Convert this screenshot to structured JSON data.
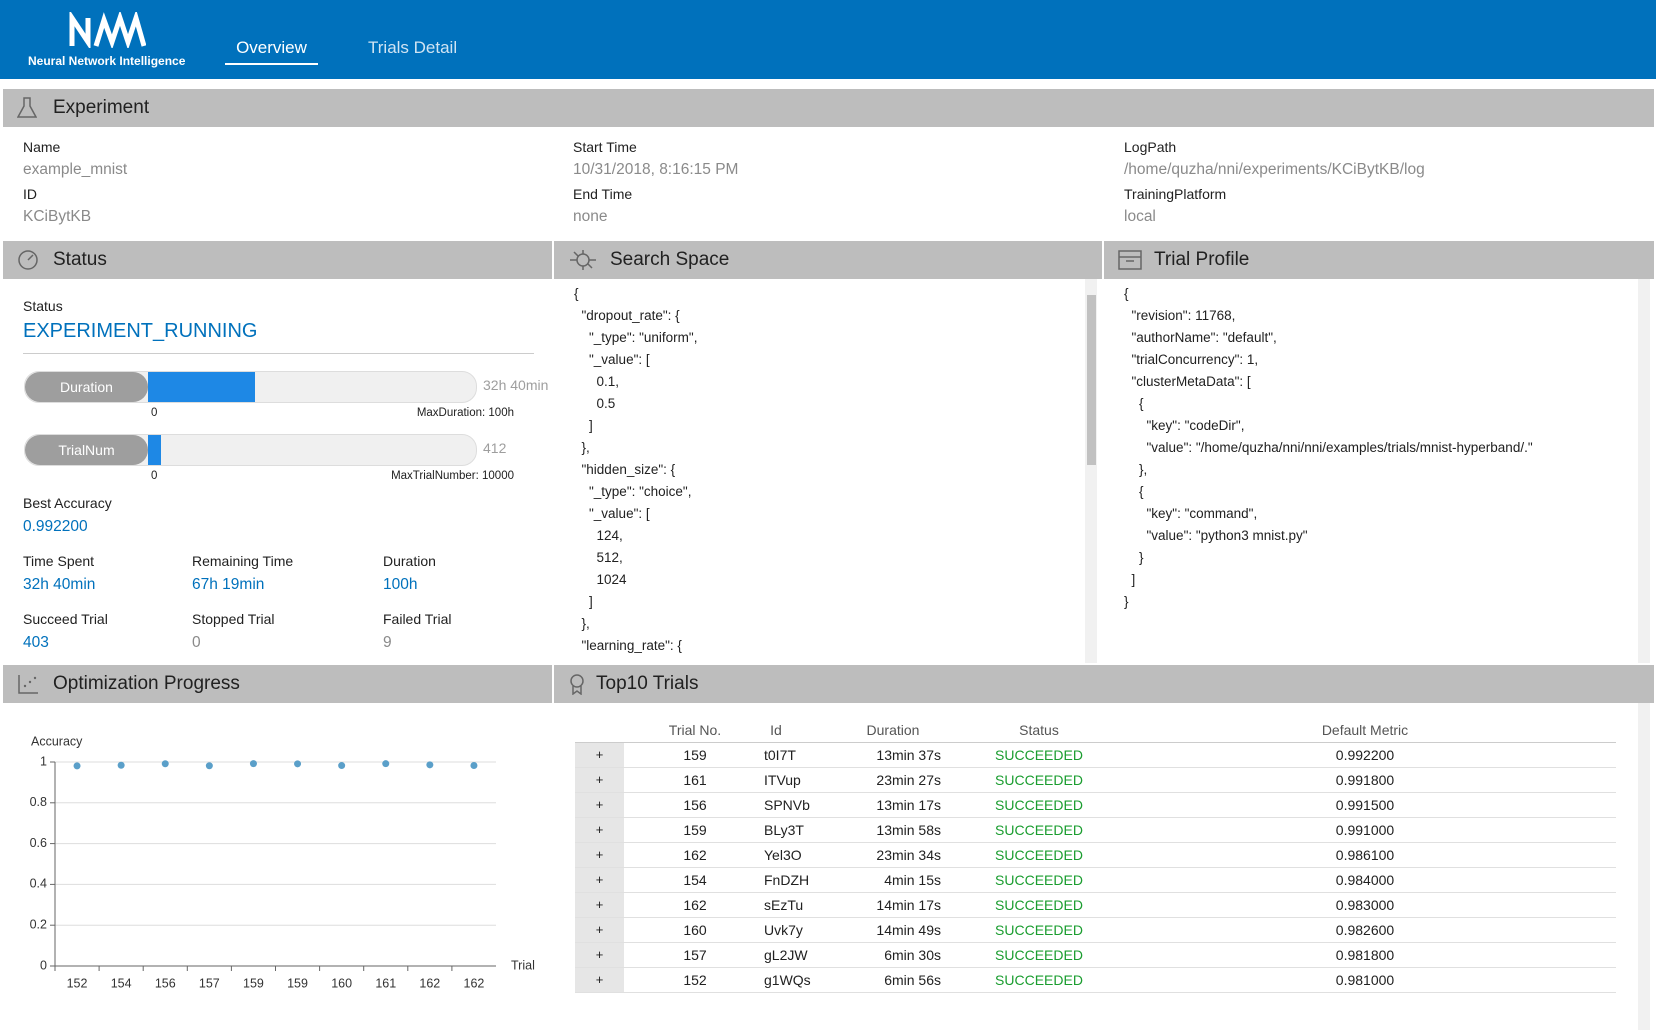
{
  "header": {
    "logo_text": "Neural Network Intelligence",
    "nav": [
      "Overview",
      "Trials Detail"
    ]
  },
  "experiment": {
    "title": "Experiment",
    "fields": [
      {
        "label": "Name",
        "value": "example_mnist"
      },
      {
        "label": "ID",
        "value": "KCiBytKB"
      },
      {
        "label": "Start Time",
        "value": "10/31/2018, 8:16:15 PM"
      },
      {
        "label": "End Time",
        "value": "none"
      },
      {
        "label": "LogPath",
        "value": "/home/quzha/nni/experiments/KCiBytKB/log"
      },
      {
        "label": "TrainingPlatform",
        "value": "local"
      }
    ]
  },
  "status": {
    "title": "Status",
    "status_label": "Status",
    "status": "EXPERIMENT_RUNNING",
    "bars": [
      {
        "label": "Duration",
        "value": 32.67,
        "value_label": "32h 40min",
        "min": 0,
        "max": 100,
        "max_label": "MaxDuration: 100h"
      },
      {
        "label": "TrialNum",
        "value": 412,
        "min": 0,
        "max": 10000,
        "max_label": "MaxTrialNumber: 10000"
      }
    ],
    "best_label": "Best Accuracy",
    "best_value": "0.992200",
    "stats": [
      {
        "label": "Time Spent",
        "value": "32h 40min"
      },
      {
        "label": "Remaining Time",
        "value": "67h 19min"
      },
      {
        "label": "Duration",
        "value": "100h"
      },
      {
        "label": "Succeed Trial",
        "value": "403"
      },
      {
        "label": "Stopped Trial",
        "value": "0"
      },
      {
        "label": "Failed Trial",
        "value": "9"
      }
    ]
  },
  "search_space": {
    "title": "Search Space",
    "lines": [
      "{",
      "  \"dropout_rate\": {",
      "    \"_type\": \"uniform\",",
      "    \"_value\": [",
      "      0.1,",
      "      0.5",
      "    ]",
      "  },",
      "  \"hidden_size\": {",
      "    \"_type\": \"choice\",",
      "    \"_value\": [",
      "      124,",
      "      512,",
      "      1024",
      "    ]",
      "  },",
      "  \"learning_rate\": {"
    ]
  },
  "trial_profile": {
    "title": "Trial Profile",
    "lines": [
      "{",
      "  \"revision\": 11768,",
      "  \"authorName\": \"default\",",
      "  \"trialConcurrency\": 1,",
      "  \"clusterMetaData\": [",
      "    {",
      "      \"key\": \"codeDir\",",
      "      \"value\": \"/home/quzha/nni/nni/examples/trials/mnist-hyperband/.\"",
      "    },",
      "    {",
      "      \"key\": \"command\",",
      "      \"value\": \"python3 mnist.py\"",
      "    }",
      "  ]",
      "}"
    ]
  },
  "optimization_title": "Optimization Progress",
  "chart_data": {
    "type": "scatter",
    "y_label": "Accuracy",
    "x_label": "Trial",
    "categories": [
      152,
      154,
      156,
      157,
      159,
      159,
      160,
      161,
      162,
      162
    ],
    "values": [
      0.981,
      0.984,
      0.9915,
      0.9818,
      0.9922,
      0.991,
      0.9826,
      0.9918,
      0.9861,
      0.983
    ],
    "color": "#5a9fc9",
    "ylim": [
      0,
      1
    ],
    "yticks": [
      0,
      0.2,
      0.4,
      0.6,
      0.8,
      1
    ],
    "grid": true
  },
  "top10": {
    "title": "Top10 Trials",
    "expand_label": "+",
    "columns": [
      "Trial No.",
      "Id",
      "Duration",
      "Status",
      "Default Metric"
    ],
    "rows": [
      [
        159,
        "t0I7T",
        "13min 37s",
        "SUCCEEDED",
        "0.992200"
      ],
      [
        161,
        "ITVup",
        "23min 27s",
        "SUCCEEDED",
        "0.991800"
      ],
      [
        156,
        "SPNVb",
        "13min 17s",
        "SUCCEEDED",
        "0.991500"
      ],
      [
        159,
        "BLy3T",
        "13min 58s",
        "SUCCEEDED",
        "0.991000"
      ],
      [
        162,
        "Yel3O",
        "23min 34s",
        "SUCCEEDED",
        "0.986100"
      ],
      [
        154,
        "FnDZH",
        "4min 15s",
        "SUCCEEDED",
        "0.984000"
      ],
      [
        162,
        "sEzTu",
        "14min 17s",
        "SUCCEEDED",
        "0.983000"
      ],
      [
        160,
        "Uvk7y",
        "14min 49s",
        "SUCCEEDED",
        "0.982600"
      ],
      [
        157,
        "gL2JW",
        "6min 30s",
        "SUCCEEDED",
        "0.981800"
      ],
      [
        152,
        "g1WQs",
        "6min 56s",
        "SUCCEEDED",
        "0.981000"
      ]
    ]
  }
}
